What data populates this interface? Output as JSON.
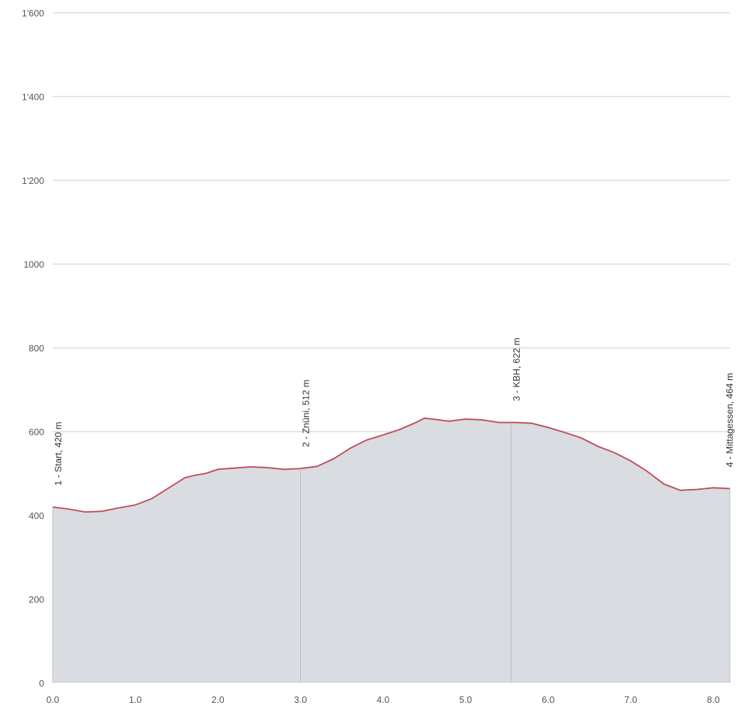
{
  "chart_data": {
    "type": "area",
    "title": "",
    "xlabel": "",
    "ylabel": "",
    "xlim": [
      0,
      8.2
    ],
    "ylim": [
      0,
      1600
    ],
    "grid": true,
    "legend": "none",
    "colors": {
      "fill": "#d9dce1",
      "line": "#c0505a",
      "grid": "#dcdcdc",
      "marker_line": "#b8bcc4"
    },
    "y_ticks": [
      {
        "value": 0,
        "label": "0"
      },
      {
        "value": 200,
        "label": "200"
      },
      {
        "value": 400,
        "label": "400"
      },
      {
        "value": 600,
        "label": "600"
      },
      {
        "value": 800,
        "label": "800"
      },
      {
        "value": 1000,
        "label": "1000"
      },
      {
        "value": 1200,
        "label": "1'200"
      },
      {
        "value": 1400,
        "label": "1'400"
      },
      {
        "value": 1600,
        "label": "1'600"
      }
    ],
    "x_ticks": [
      {
        "value": 0,
        "label": "0.0"
      },
      {
        "value": 1,
        "label": "1.0"
      },
      {
        "value": 2,
        "label": "2.0"
      },
      {
        "value": 3,
        "label": "3.0"
      },
      {
        "value": 4,
        "label": "4.0"
      },
      {
        "value": 5,
        "label": "5.0"
      },
      {
        "value": 6,
        "label": "6.0"
      },
      {
        "value": 7,
        "label": "7.0"
      },
      {
        "value": 8,
        "label": "8.0"
      }
    ],
    "series": [
      {
        "x": [
          0.0,
          0.2,
          0.4,
          0.6,
          0.8,
          1.0,
          1.2,
          1.4,
          1.6,
          1.7,
          1.85,
          2.0,
          2.2,
          2.4,
          2.6,
          2.8,
          3.0,
          3.2,
          3.4,
          3.6,
          3.8,
          4.0,
          4.2,
          4.4,
          4.5,
          4.6,
          4.8,
          5.0,
          5.2,
          5.4,
          5.6,
          5.8,
          6.0,
          6.2,
          6.4,
          6.6,
          6.8,
          7.0,
          7.2,
          7.4,
          7.6,
          7.8,
          8.0,
          8.2
        ],
        "y": [
          420,
          415,
          408,
          410,
          418,
          425,
          440,
          465,
          490,
          495,
          500,
          510,
          513,
          516,
          514,
          510,
          512,
          517,
          535,
          560,
          580,
          592,
          605,
          622,
          632,
          630,
          625,
          630,
          628,
          622,
          622,
          620,
          610,
          598,
          585,
          565,
          550,
          530,
          505,
          475,
          460,
          462,
          466,
          464
        ]
      }
    ],
    "markers": [
      {
        "x": 0.0,
        "label": "1 - Start, 420 m"
      },
      {
        "x": 3.0,
        "label": "2 - Znüni, 512 m"
      },
      {
        "x": 5.55,
        "label": "3 - KBH, 622 m"
      },
      {
        "x": 8.2,
        "label": "4 - Mittagessen, 464 m"
      }
    ]
  }
}
